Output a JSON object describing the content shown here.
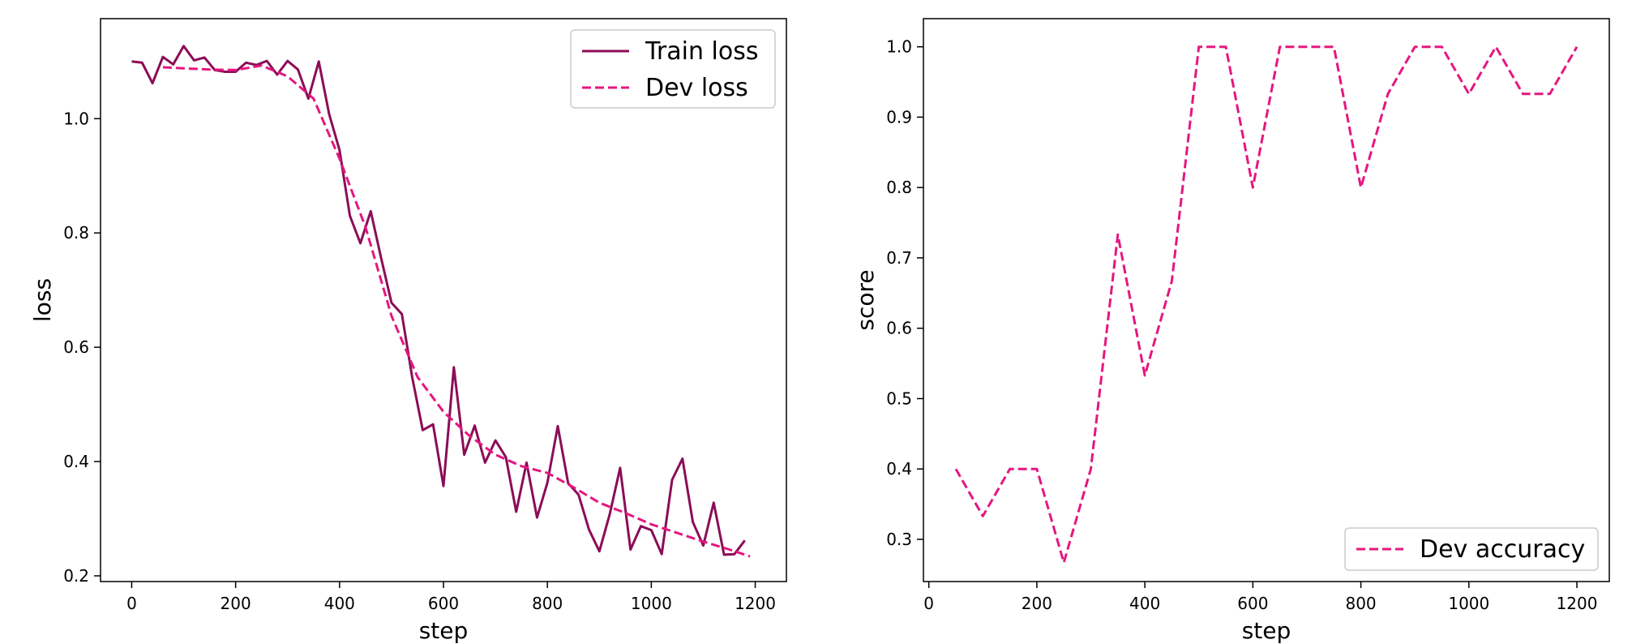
{
  "colors": {
    "train": "#8b0d57",
    "dev": "#e5177f",
    "axis": "#000000",
    "legend_border": "#cccccc"
  },
  "chart_data": [
    {
      "type": "line",
      "xlabel": "step",
      "ylabel": "loss",
      "xlim": [
        -60,
        1260
      ],
      "ylim": [
        0.19,
        1.175
      ],
      "xticks": [
        0,
        200,
        400,
        600,
        800,
        1000,
        1200
      ],
      "yticks": [
        0.2,
        0.4,
        0.6,
        0.8,
        1.0
      ],
      "xtick_labels": [
        "0",
        "200",
        "400",
        "600",
        "800",
        "1000",
        "1200"
      ],
      "ytick_labels": [
        "0.2",
        "0.4",
        "0.6",
        "0.8",
        "1.0"
      ],
      "grid": false,
      "legend_position": "top-right",
      "series": [
        {
          "name": "Train loss",
          "style": "solid",
          "color": "#8b0d57",
          "x": [
            0,
            20,
            40,
            60,
            80,
            100,
            120,
            140,
            160,
            180,
            200,
            220,
            240,
            260,
            280,
            300,
            320,
            340,
            360,
            380,
            400,
            420,
            440,
            460,
            480,
            500,
            520,
            540,
            560,
            580,
            600,
            620,
            640,
            660,
            680,
            700,
            720,
            740,
            760,
            780,
            800,
            820,
            840,
            860,
            880,
            900,
            920,
            940,
            960,
            980,
            1000,
            1020,
            1040,
            1060,
            1080,
            1100,
            1120,
            1140,
            1160,
            1180
          ],
          "values": [
            1.1,
            1.098,
            1.062,
            1.108,
            1.095,
            1.127,
            1.102,
            1.107,
            1.085,
            1.082,
            1.082,
            1.098,
            1.094,
            1.101,
            1.077,
            1.101,
            1.086,
            1.035,
            1.1,
            1.008,
            0.945,
            0.83,
            0.782,
            0.838,
            0.756,
            0.678,
            0.658,
            0.547,
            0.455,
            0.465,
            0.357,
            0.565,
            0.412,
            0.463,
            0.398,
            0.437,
            0.408,
            0.312,
            0.398,
            0.302,
            0.363,
            0.462,
            0.362,
            0.342,
            0.281,
            0.243,
            0.308,
            0.389,
            0.246,
            0.287,
            0.28,
            0.238,
            0.368,
            0.405,
            0.294,
            0.253,
            0.328,
            0.237,
            0.238,
            0.262
          ]
        },
        {
          "name": "Dev loss",
          "style": "dashed",
          "color": "#e5177f",
          "x": [
            60,
            100,
            150,
            200,
            250,
            300,
            350,
            400,
            450,
            500,
            550,
            600,
            650,
            700,
            750,
            800,
            850,
            900,
            950,
            1000,
            1050,
            1100,
            1150,
            1190
          ],
          "values": [
            1.09,
            1.088,
            1.086,
            1.085,
            1.093,
            1.074,
            1.035,
            0.93,
            0.81,
            0.655,
            0.548,
            0.487,
            0.445,
            0.412,
            0.392,
            0.38,
            0.355,
            0.328,
            0.31,
            0.29,
            0.275,
            0.26,
            0.246,
            0.234
          ]
        }
      ]
    },
    {
      "type": "line",
      "xlabel": "step",
      "ylabel": "score",
      "xlim": [
        -10,
        1260
      ],
      "ylim": [
        0.24,
        1.04
      ],
      "xticks": [
        0,
        200,
        400,
        600,
        800,
        1000,
        1200
      ],
      "yticks": [
        0.3,
        0.4,
        0.5,
        0.6,
        0.7,
        0.8,
        0.9,
        1.0
      ],
      "xtick_labels": [
        "0",
        "200",
        "400",
        "600",
        "800",
        "1000",
        "1200"
      ],
      "ytick_labels": [
        "0.3",
        "0.4",
        "0.5",
        "0.6",
        "0.7",
        "0.8",
        "0.9",
        "1.0"
      ],
      "grid": false,
      "legend_position": "bottom-right",
      "series": [
        {
          "name": "Dev accuracy",
          "style": "dashed",
          "color": "#e5177f",
          "x": [
            50,
            100,
            150,
            200,
            250,
            300,
            350,
            400,
            450,
            500,
            550,
            600,
            650,
            700,
            750,
            800,
            850,
            900,
            950,
            1000,
            1050,
            1100,
            1150,
            1200
          ],
          "values": [
            0.4,
            0.333,
            0.4,
            0.4,
            0.267,
            0.4,
            0.733,
            0.533,
            0.667,
            1.0,
            1.0,
            0.8,
            1.0,
            1.0,
            1.0,
            0.8,
            0.933,
            1.0,
            1.0,
            0.933,
            1.0,
            0.933,
            0.933,
            1.0
          ]
        }
      ]
    }
  ]
}
